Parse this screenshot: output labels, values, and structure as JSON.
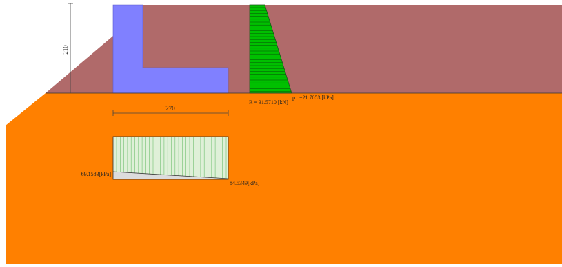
{
  "colors": {
    "background": "#ffffff",
    "soil_upper": "#b06a6a",
    "soil_lower": "#ff8000",
    "wall": "#8080ff",
    "earth_pressure": "#00c000",
    "contact_pressure_fill": "#dff0d8",
    "contact_pressure_hatch": "#6fbf6f",
    "contact_pressure_base": "#dcdcdc",
    "dimension_line": "#444444"
  },
  "dimensions": {
    "height_label": "210",
    "width_label": "270"
  },
  "earth_pressure": {
    "resultant_label": "R = 31.5710 [kN]",
    "max_pressure_label": "p...=21.7053 [kPa]"
  },
  "contact_pressure": {
    "left_label": "69.1583[kPa]",
    "right_label": "84.5349[kPa]"
  }
}
